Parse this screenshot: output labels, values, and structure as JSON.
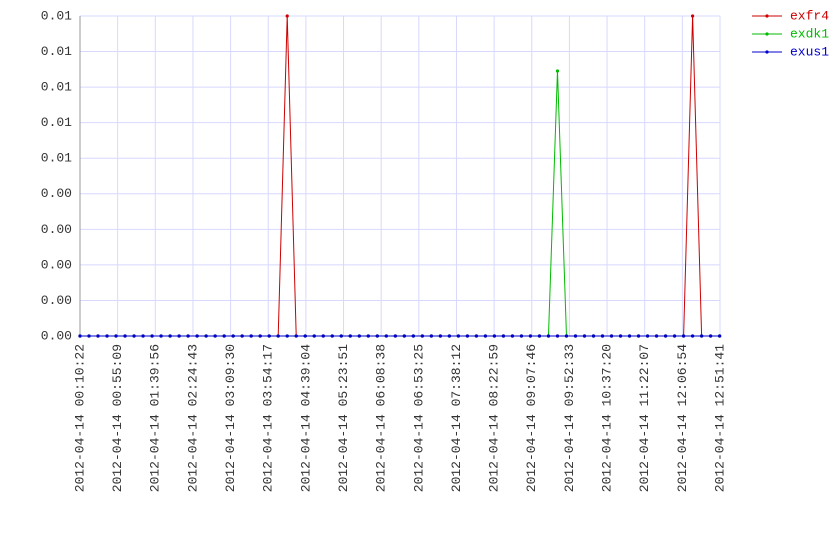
{
  "chart_data": {
    "type": "line",
    "x": [
      "2012-04-14 00:10:22",
      "2012-04-14 00:21:05",
      "2012-04-14 00:31:48",
      "2012-04-14 00:42:31",
      "2012-04-14 00:53:14",
      "2012-04-14 01:03:57",
      "2012-04-14 01:14:40",
      "2012-04-14 01:25:23",
      "2012-04-14 01:36:06",
      "2012-04-14 01:46:49",
      "2012-04-14 01:57:32",
      "2012-04-14 02:08:15",
      "2012-04-14 02:18:58",
      "2012-04-14 02:29:41",
      "2012-04-14 02:40:24",
      "2012-04-14 02:51:07",
      "2012-04-14 03:01:50",
      "2012-04-14 03:12:33",
      "2012-04-14 03:23:16",
      "2012-04-14 03:33:59",
      "2012-04-14 03:44:42",
      "2012-04-14 03:55:25",
      "2012-04-14 04:06:08",
      "2012-04-14 04:16:51",
      "2012-04-14 04:27:34",
      "2012-04-14 04:38:17",
      "2012-04-14 04:49:00",
      "2012-04-14 04:59:43",
      "2012-04-14 05:10:26",
      "2012-04-14 05:21:09",
      "2012-04-14 05:31:52",
      "2012-04-14 05:42:35",
      "2012-04-14 05:53:18",
      "2012-04-14 06:04:01",
      "2012-04-14 06:14:44",
      "2012-04-14 06:25:27",
      "2012-04-14 06:36:10",
      "2012-04-14 06:46:53",
      "2012-04-14 06:57:36",
      "2012-04-14 07:08:19",
      "2012-04-14 07:19:02",
      "2012-04-14 07:29:45",
      "2012-04-14 07:40:28",
      "2012-04-14 07:51:11",
      "2012-04-14 08:01:54",
      "2012-04-14 08:12:37",
      "2012-04-14 08:23:20",
      "2012-04-14 08:34:03",
      "2012-04-14 08:44:46",
      "2012-04-14 08:55:29",
      "2012-04-14 09:06:12",
      "2012-04-14 09:16:55",
      "2012-04-14 09:27:38",
      "2012-04-14 09:38:21",
      "2012-04-14 09:49:04",
      "2012-04-14 09:59:47",
      "2012-04-14 10:10:30",
      "2012-04-14 10:21:13",
      "2012-04-14 10:31:56",
      "2012-04-14 10:42:39",
      "2012-04-14 10:53:22",
      "2012-04-14 11:04:05",
      "2012-04-14 11:14:48",
      "2012-04-14 11:25:31",
      "2012-04-14 11:36:14",
      "2012-04-14 11:46:57",
      "2012-04-14 11:57:40",
      "2012-04-14 12:08:23",
      "2012-04-14 12:19:06",
      "2012-04-14 12:29:49",
      "2012-04-14 12:40:32",
      "2012-04-14 12:51:15"
    ],
    "series": [
      {
        "name": "exfr4",
        "color": "#cc0000",
        "values": [
          0,
          0,
          0,
          0,
          0,
          0,
          0,
          0,
          0,
          0,
          0,
          0,
          0,
          0,
          0,
          0,
          0,
          0,
          0,
          0,
          0,
          0,
          0,
          0.0099,
          0,
          0,
          0,
          0,
          0,
          0,
          0,
          0,
          0,
          0,
          0,
          0,
          0,
          0,
          0,
          0,
          0,
          0,
          0,
          0,
          0,
          0,
          0,
          0,
          0,
          0,
          0,
          0,
          0,
          0,
          0,
          0,
          0,
          0,
          0,
          0,
          0,
          0,
          0,
          0,
          0,
          0,
          0,
          0,
          0.0099,
          0,
          0,
          0
        ]
      },
      {
        "name": "exdk1",
        "color": "#00bb00",
        "values": [
          0,
          0,
          0,
          0,
          0,
          0,
          0,
          0,
          0,
          0,
          0,
          0,
          0,
          0,
          0,
          0,
          0,
          0,
          0,
          0,
          0,
          0,
          0,
          0,
          0,
          0,
          0,
          0,
          0,
          0,
          0,
          0,
          0,
          0,
          0,
          0,
          0,
          0,
          0,
          0,
          0,
          0,
          0,
          0,
          0,
          0,
          0,
          0,
          0,
          0,
          0,
          0,
          0,
          0.0082,
          0,
          0,
          0,
          0,
          0,
          0,
          0,
          0,
          0,
          0,
          0,
          0,
          0,
          0,
          0,
          0,
          0,
          0
        ]
      },
      {
        "name": "exus1",
        "color": "#0000cc",
        "values": [
          0,
          0,
          0,
          0,
          0,
          0,
          0,
          0,
          0,
          0,
          0,
          0,
          0,
          0,
          0,
          0,
          0,
          0,
          0,
          0,
          0,
          0,
          0,
          0,
          0,
          0,
          0,
          0,
          0,
          0,
          0,
          0,
          0,
          0,
          0,
          0,
          0,
          0,
          0,
          0,
          0,
          0,
          0,
          0,
          0,
          0,
          0,
          0,
          0,
          0,
          0,
          0,
          0,
          0,
          0,
          0,
          0,
          0,
          0,
          0,
          0,
          0,
          0,
          0,
          0,
          0,
          0,
          0,
          0,
          0,
          0,
          0
        ]
      }
    ],
    "xlim": [
      "2012-04-14 00:10:22",
      "2012-04-14 12:51:41"
    ],
    "xticks": [
      "2012-04-14 00:10:22",
      "2012-04-14 00:55:09",
      "2012-04-14 01:39:56",
      "2012-04-14 02:24:43",
      "2012-04-14 03:09:30",
      "2012-04-14 03:54:17",
      "2012-04-14 04:39:04",
      "2012-04-14 05:23:51",
      "2012-04-14 06:08:38",
      "2012-04-14 06:53:25",
      "2012-04-14 07:38:12",
      "2012-04-14 08:22:59",
      "2012-04-14 09:07:46",
      "2012-04-14 09:52:33",
      "2012-04-14 10:37:20",
      "2012-04-14 11:22:07",
      "2012-04-14 12:06:54",
      "2012-04-14 12:51:41"
    ],
    "ylim": [
      0,
      0.0099
    ],
    "yticks": [
      {
        "value": 0,
        "label": "0.00"
      },
      {
        "value": 0.0011,
        "label": "0.00"
      },
      {
        "value": 0.0022,
        "label": "0.00"
      },
      {
        "value": 0.0033,
        "label": "0.00"
      },
      {
        "value": 0.0044,
        "label": "0.00"
      },
      {
        "value": 0.0055,
        "label": "0.01"
      },
      {
        "value": 0.0066,
        "label": "0.01"
      },
      {
        "value": 0.0077,
        "label": "0.01"
      },
      {
        "value": 0.0088,
        "label": "0.01"
      },
      {
        "value": 0.0099,
        "label": "0.01"
      }
    ],
    "grid": true,
    "legend": "top-right"
  }
}
